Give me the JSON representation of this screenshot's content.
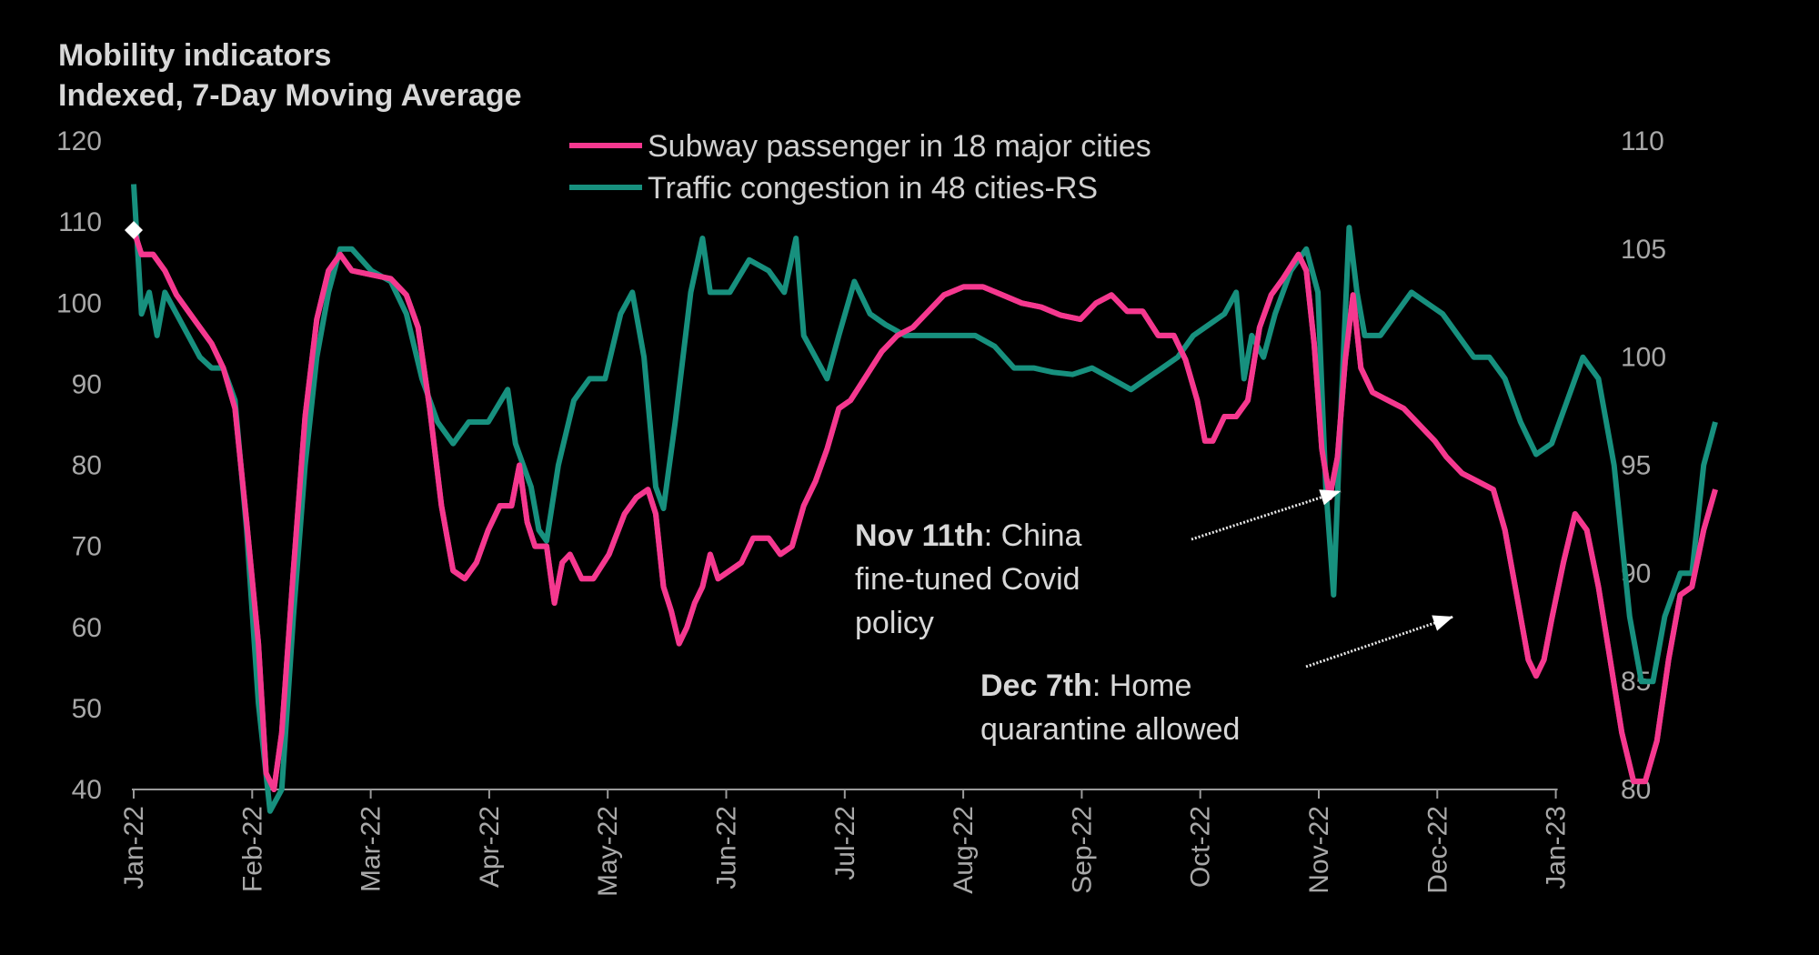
{
  "chart_data": {
    "type": "line",
    "title": "Mobility indicators",
    "subtitle": "Indexed, 7-Day Moving Average",
    "x_tick_labels": [
      "Jan-22",
      "Feb-22",
      "Mar-22",
      "Apr-22",
      "May-22",
      "Jun-22",
      "Jul-22",
      "Aug-22",
      "Sep-22",
      "Oct-22",
      "Nov-22",
      "Dec-22",
      "Jan-23"
    ],
    "y_left": {
      "min": 40,
      "max": 120,
      "ticks": [
        40,
        50,
        60,
        70,
        80,
        90,
        100,
        110,
        120
      ]
    },
    "y_right": {
      "min": 80,
      "max": 110,
      "ticks": [
        80,
        85,
        90,
        95,
        100,
        105,
        110
      ]
    },
    "legend_placement": "top-center",
    "grid": false,
    "series": [
      {
        "name": "Subway passenger in 18 major cities",
        "axis": "left",
        "color": "#f5388f",
        "points": [
          [
            "2022-01-01",
            109
          ],
          [
            "2022-01-03",
            106
          ],
          [
            "2022-01-06",
            106
          ],
          [
            "2022-01-09",
            104
          ],
          [
            "2022-01-12",
            101
          ],
          [
            "2022-01-15",
            99
          ],
          [
            "2022-01-18",
            97
          ],
          [
            "2022-01-21",
            95
          ],
          [
            "2022-01-24",
            92
          ],
          [
            "2022-01-27",
            87
          ],
          [
            "2022-01-30",
            73
          ],
          [
            "2022-02-02",
            58
          ],
          [
            "2022-02-04",
            42
          ],
          [
            "2022-02-06",
            40
          ],
          [
            "2022-02-08",
            47
          ],
          [
            "2022-02-11",
            67
          ],
          [
            "2022-02-14",
            86
          ],
          [
            "2022-02-17",
            98
          ],
          [
            "2022-02-20",
            104
          ],
          [
            "2022-02-23",
            106
          ],
          [
            "2022-02-26",
            104
          ],
          [
            "2022-03-03",
            103.5
          ],
          [
            "2022-03-08",
            103
          ],
          [
            "2022-03-12",
            101
          ],
          [
            "2022-03-15",
            97
          ],
          [
            "2022-03-18",
            87
          ],
          [
            "2022-03-21",
            75
          ],
          [
            "2022-03-24",
            67
          ],
          [
            "2022-03-27",
            66
          ],
          [
            "2022-03-30",
            68
          ],
          [
            "2022-04-02",
            72
          ],
          [
            "2022-04-05",
            75
          ],
          [
            "2022-04-08",
            75
          ],
          [
            "2022-04-10",
            80
          ],
          [
            "2022-04-12",
            73
          ],
          [
            "2022-04-14",
            70
          ],
          [
            "2022-04-17",
            70
          ],
          [
            "2022-04-19",
            63
          ],
          [
            "2022-04-21",
            68
          ],
          [
            "2022-04-23",
            69
          ],
          [
            "2022-04-26",
            66
          ],
          [
            "2022-04-29",
            66
          ],
          [
            "2022-05-03",
            69
          ],
          [
            "2022-05-07",
            74
          ],
          [
            "2022-05-10",
            76
          ],
          [
            "2022-05-13",
            77
          ],
          [
            "2022-05-15",
            74
          ],
          [
            "2022-05-17",
            65
          ],
          [
            "2022-05-19",
            62
          ],
          [
            "2022-05-21",
            58
          ],
          [
            "2022-05-23",
            60
          ],
          [
            "2022-05-25",
            63
          ],
          [
            "2022-05-27",
            65
          ],
          [
            "2022-05-29",
            69
          ],
          [
            "2022-05-31",
            66
          ],
          [
            "2022-06-03",
            67
          ],
          [
            "2022-06-06",
            68
          ],
          [
            "2022-06-09",
            71
          ],
          [
            "2022-06-13",
            71
          ],
          [
            "2022-06-16",
            69
          ],
          [
            "2022-06-19",
            70
          ],
          [
            "2022-06-22",
            75
          ],
          [
            "2022-06-25",
            78
          ],
          [
            "2022-06-28",
            82
          ],
          [
            "2022-07-01",
            87
          ],
          [
            "2022-07-04",
            88
          ],
          [
            "2022-07-08",
            91
          ],
          [
            "2022-07-12",
            94
          ],
          [
            "2022-07-16",
            96
          ],
          [
            "2022-07-20",
            97
          ],
          [
            "2022-07-24",
            99
          ],
          [
            "2022-07-28",
            101
          ],
          [
            "2022-08-02",
            102
          ],
          [
            "2022-08-07",
            102
          ],
          [
            "2022-08-12",
            101
          ],
          [
            "2022-08-17",
            100
          ],
          [
            "2022-08-22",
            99.5
          ],
          [
            "2022-08-27",
            98.5
          ],
          [
            "2022-09-01",
            98
          ],
          [
            "2022-09-05",
            100
          ],
          [
            "2022-09-09",
            101
          ],
          [
            "2022-09-13",
            99
          ],
          [
            "2022-09-17",
            99
          ],
          [
            "2022-09-21",
            96
          ],
          [
            "2022-09-25",
            96
          ],
          [
            "2022-09-28",
            93
          ],
          [
            "2022-10-01",
            88
          ],
          [
            "2022-10-03",
            83
          ],
          [
            "2022-10-05",
            83
          ],
          [
            "2022-10-08",
            86
          ],
          [
            "2022-10-11",
            86
          ],
          [
            "2022-10-14",
            88
          ],
          [
            "2022-10-17",
            97
          ],
          [
            "2022-10-20",
            101
          ],
          [
            "2022-10-23",
            103
          ],
          [
            "2022-10-27",
            106
          ],
          [
            "2022-10-29",
            104
          ],
          [
            "2022-10-31",
            95
          ],
          [
            "2022-11-02",
            82
          ],
          [
            "2022-11-04",
            76
          ],
          [
            "2022-11-06",
            81
          ],
          [
            "2022-11-08",
            93
          ],
          [
            "2022-11-10",
            101
          ],
          [
            "2022-11-12",
            92
          ],
          [
            "2022-11-15",
            89
          ],
          [
            "2022-11-19",
            88
          ],
          [
            "2022-11-23",
            87
          ],
          [
            "2022-11-27",
            85
          ],
          [
            "2022-12-01",
            83
          ],
          [
            "2022-12-04",
            81
          ],
          [
            "2022-12-08",
            79
          ],
          [
            "2022-12-12",
            78
          ],
          [
            "2022-12-16",
            77
          ],
          [
            "2022-12-19",
            72
          ],
          [
            "2022-12-22",
            64
          ],
          [
            "2022-12-25",
            56
          ],
          [
            "2022-12-27",
            54
          ],
          [
            "2022-12-29",
            56
          ],
          [
            "2022-12-31",
            61
          ],
          [
            "2023-01-03",
            68
          ],
          [
            "2023-01-06",
            74
          ],
          [
            "2023-01-09",
            72
          ],
          [
            "2023-01-12",
            65
          ],
          [
            "2023-01-15",
            56
          ],
          [
            "2023-01-18",
            47
          ],
          [
            "2023-01-21",
            41
          ],
          [
            "2023-01-24",
            41
          ],
          [
            "2023-01-27",
            46
          ],
          [
            "2023-01-30",
            56
          ],
          [
            "2023-02-02",
            64
          ],
          [
            "2023-02-05",
            65
          ],
          [
            "2023-02-08",
            72
          ],
          [
            "2023-02-11",
            77
          ]
        ]
      },
      {
        "name": "Traffic congestion in 48 cities-RS",
        "axis": "right",
        "color": "#17907e",
        "points": [
          [
            "2022-01-01",
            108
          ],
          [
            "2022-01-03",
            102
          ],
          [
            "2022-01-05",
            103
          ],
          [
            "2022-01-07",
            101
          ],
          [
            "2022-01-09",
            103
          ],
          [
            "2022-01-12",
            102
          ],
          [
            "2022-01-15",
            101
          ],
          [
            "2022-01-18",
            100
          ],
          [
            "2022-01-21",
            99.5
          ],
          [
            "2022-01-24",
            99.5
          ],
          [
            "2022-01-27",
            98
          ],
          [
            "2022-01-30",
            92
          ],
          [
            "2022-02-02",
            84
          ],
          [
            "2022-02-05",
            79
          ],
          [
            "2022-02-08",
            80
          ],
          [
            "2022-02-11",
            88
          ],
          [
            "2022-02-14",
            95
          ],
          [
            "2022-02-17",
            100
          ],
          [
            "2022-02-20",
            103
          ],
          [
            "2022-02-23",
            105
          ],
          [
            "2022-02-26",
            105
          ],
          [
            "2022-03-03",
            104
          ],
          [
            "2022-03-08",
            103.5
          ],
          [
            "2022-03-12",
            102
          ],
          [
            "2022-03-16",
            99
          ],
          [
            "2022-03-20",
            97
          ],
          [
            "2022-03-24",
            96
          ],
          [
            "2022-03-28",
            97
          ],
          [
            "2022-04-02",
            97
          ],
          [
            "2022-04-07",
            98.5
          ],
          [
            "2022-04-09",
            96
          ],
          [
            "2022-04-11",
            95
          ],
          [
            "2022-04-13",
            94
          ],
          [
            "2022-04-15",
            92
          ],
          [
            "2022-04-17",
            91.5
          ],
          [
            "2022-04-20",
            95
          ],
          [
            "2022-04-24",
            98
          ],
          [
            "2022-04-28",
            99
          ],
          [
            "2022-05-02",
            99
          ],
          [
            "2022-05-06",
            102
          ],
          [
            "2022-05-09",
            103
          ],
          [
            "2022-05-12",
            100
          ],
          [
            "2022-05-15",
            94
          ],
          [
            "2022-05-17",
            93
          ],
          [
            "2022-05-20",
            97
          ],
          [
            "2022-05-24",
            103
          ],
          [
            "2022-05-27",
            105.5
          ],
          [
            "2022-05-29",
            103
          ],
          [
            "2022-06-03",
            103
          ],
          [
            "2022-06-08",
            104.5
          ],
          [
            "2022-06-13",
            104
          ],
          [
            "2022-06-17",
            103
          ],
          [
            "2022-06-20",
            105.5
          ],
          [
            "2022-06-22",
            101
          ],
          [
            "2022-06-25",
            100
          ],
          [
            "2022-06-28",
            99
          ],
          [
            "2022-07-01",
            101
          ],
          [
            "2022-07-05",
            103.5
          ],
          [
            "2022-07-09",
            102
          ],
          [
            "2022-07-13",
            101.5
          ],
          [
            "2022-07-18",
            101
          ],
          [
            "2022-07-24",
            101
          ],
          [
            "2022-07-30",
            101
          ],
          [
            "2022-08-05",
            101
          ],
          [
            "2022-08-10",
            100.5
          ],
          [
            "2022-08-15",
            99.5
          ],
          [
            "2022-08-20",
            99.5
          ],
          [
            "2022-08-25",
            99.3
          ],
          [
            "2022-08-30",
            99.2
          ],
          [
            "2022-09-04",
            99.5
          ],
          [
            "2022-09-09",
            99
          ],
          [
            "2022-09-14",
            98.5
          ],
          [
            "2022-09-18",
            99
          ],
          [
            "2022-09-22",
            99.5
          ],
          [
            "2022-09-26",
            100
          ],
          [
            "2022-09-30",
            101
          ],
          [
            "2022-10-04",
            101.5
          ],
          [
            "2022-10-08",
            102
          ],
          [
            "2022-10-11",
            103
          ],
          [
            "2022-10-13",
            99
          ],
          [
            "2022-10-15",
            101
          ],
          [
            "2022-10-18",
            100
          ],
          [
            "2022-10-21",
            102
          ],
          [
            "2022-10-25",
            104
          ],
          [
            "2022-10-29",
            105
          ],
          [
            "2022-11-01",
            103
          ],
          [
            "2022-11-03",
            94
          ],
          [
            "2022-11-05",
            89
          ],
          [
            "2022-11-07",
            98
          ],
          [
            "2022-11-09",
            106
          ],
          [
            "2022-11-11",
            103
          ],
          [
            "2022-11-13",
            101
          ],
          [
            "2022-11-17",
            101
          ],
          [
            "2022-11-21",
            102
          ],
          [
            "2022-11-25",
            103
          ],
          [
            "2022-11-29",
            102.5
          ],
          [
            "2022-12-03",
            102
          ],
          [
            "2022-12-07",
            101
          ],
          [
            "2022-12-11",
            100
          ],
          [
            "2022-12-15",
            100
          ],
          [
            "2022-12-19",
            99
          ],
          [
            "2022-12-23",
            97
          ],
          [
            "2022-12-27",
            95.5
          ],
          [
            "2022-12-31",
            96
          ],
          [
            "2023-01-04",
            98
          ],
          [
            "2023-01-08",
            100
          ],
          [
            "2023-01-12",
            99
          ],
          [
            "2023-01-16",
            95
          ],
          [
            "2023-01-20",
            88
          ],
          [
            "2023-01-23",
            85
          ],
          [
            "2023-01-26",
            85
          ],
          [
            "2023-01-29",
            88
          ],
          [
            "2023-02-02",
            90
          ],
          [
            "2023-02-05",
            90
          ],
          [
            "2023-02-08",
            95
          ],
          [
            "2023-02-11",
            97
          ]
        ]
      }
    ],
    "annotations": [
      {
        "bold": "Nov 11th",
        "text": ": China",
        "lines": [
          "fine-tuned Covid",
          "policy"
        ],
        "marker_date": "2022-11-11",
        "series": 0
      },
      {
        "bold": "Dec 7th",
        "text": ": Home",
        "lines": [
          "quarantine allowed"
        ],
        "marker_date": "2022-12-07",
        "series": 0
      }
    ]
  }
}
